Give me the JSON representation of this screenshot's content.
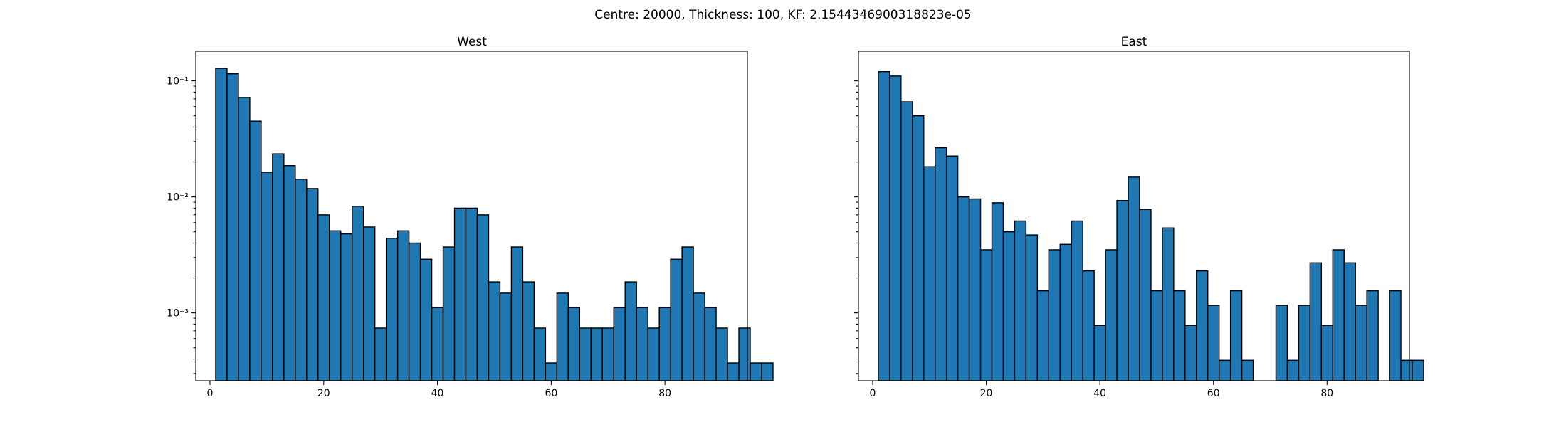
{
  "figure": {
    "suptitle": "Centre: 20000, Thickness: 100, KF: 2.1544346900318823e-05"
  },
  "chart_data": [
    {
      "type": "bar",
      "title": "West",
      "xlabel": "",
      "ylabel": "",
      "yscale": "log",
      "xlim": [
        -2.5,
        94.5
      ],
      "ylim": [
        0.00026,
        0.18
      ],
      "x_ticks": [
        0,
        20,
        40,
        60,
        80
      ],
      "y_ticks": [
        0.001,
        0.01,
        0.1
      ],
      "y_tick_labels": [
        "10⁻³",
        "10⁻²",
        "10⁻¹"
      ],
      "bin_width": 2,
      "bin_start": 1,
      "values": [
        0.128,
        0.115,
        0.072,
        0.045,
        0.0163,
        0.0235,
        0.0186,
        0.0142,
        0.0118,
        0.007,
        0.0051,
        0.0048,
        0.0083,
        0.0055,
        0.00074,
        0.0044,
        0.0051,
        0.004,
        0.0029,
        0.00111,
        0.0037,
        0.008,
        0.008,
        0.007,
        0.00185,
        0.00148,
        0.0037,
        0.00185,
        0.00074,
        0.00037,
        0.00148,
        0.00111,
        0.00074,
        0.00074,
        0.00074,
        0.00111,
        0.00185,
        0.00111,
        0.00074,
        0.00111,
        0.0029,
        0.0037,
        0.00148,
        0.00111,
        0.00074,
        0.00037,
        0.00074,
        0.00037,
        0.00037
      ],
      "bar_color": "#1f77b4",
      "edge_color": "#000000"
    },
    {
      "type": "bar",
      "title": "East",
      "xlabel": "",
      "ylabel": "",
      "yscale": "log",
      "xlim": [
        -2.5,
        94.5
      ],
      "ylim": [
        0.00026,
        0.18
      ],
      "x_ticks": [
        0,
        20,
        40,
        60,
        80
      ],
      "y_ticks": [
        0.001,
        0.01,
        0.1
      ],
      "y_tick_labels": [
        "",
        "",
        ""
      ],
      "bin_width": 2,
      "bin_start": 1,
      "values": [
        0.12,
        0.11,
        0.066,
        0.05,
        0.0182,
        0.0265,
        0.0225,
        0.01,
        0.0096,
        0.0035,
        0.0089,
        0.005,
        0.0062,
        0.0047,
        0.00155,
        0.0035,
        0.0039,
        0.0062,
        0.0023,
        0.00078,
        0.0035,
        0.0093,
        0.0148,
        0.0078,
        0.00155,
        0.0054,
        0.00155,
        0.00078,
        0.0023,
        0.00116,
        0.00039,
        0.00155,
        0.00039,
        0,
        0,
        0.00116,
        0.00039,
        0.00116,
        0.0027,
        0.00078,
        0.0035,
        0.0027,
        0.00116,
        0.00155,
        0,
        0.00155,
        0.00039,
        0.00039
      ],
      "bar_color": "#1f77b4",
      "edge_color": "#000000"
    }
  ]
}
